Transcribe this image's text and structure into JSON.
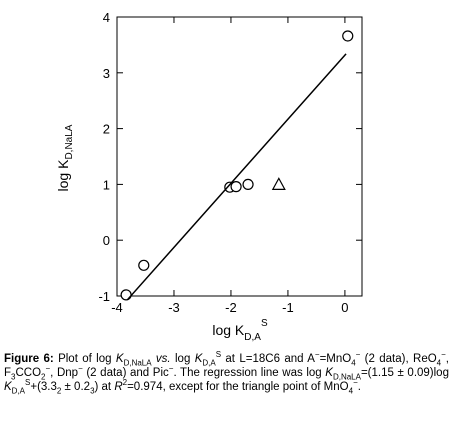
{
  "chart_data": {
    "type": "scatter",
    "xlabel": {
      "text": "log K",
      "sub": "D,A",
      "sup": "S"
    },
    "ylabel": {
      "text": "log K",
      "sub": "D,NaLA"
    },
    "xlim": [
      -4,
      0.3
    ],
    "xticks": [
      -4,
      -3,
      -2,
      -1,
      0
    ],
    "ylim": [
      -1,
      4
    ],
    "yticks": [
      -1,
      0,
      1,
      2,
      3,
      4
    ],
    "color": "#000000",
    "series": [
      {
        "marker": "circle",
        "x": [
          0.05,
          -2.02,
          -1.91,
          -1.7,
          -3.53,
          -3.84
        ],
        "y": [
          3.66,
          0.95,
          0.96,
          1.0,
          -0.45,
          -0.98
        ]
      },
      {
        "marker": "triangle",
        "x": [
          -1.16
        ],
        "y": [
          1.0
        ]
      },
      {
        "marker": "line",
        "x": [
          -3.82,
          0.02
        ],
        "y": [
          -1.07,
          3.34
        ]
      }
    ]
  },
  "caption": [
    {
      "text": "Figure 6:",
      "style": "b"
    },
    {
      "text": " Plot of log "
    },
    {
      "text": "K",
      "style": "i"
    },
    {
      "text": "D,NaLA",
      "style": "sub"
    },
    {
      "text": " vs.",
      "style": "i"
    },
    {
      "text": " log "
    },
    {
      "text": "K",
      "style": "i"
    },
    {
      "text": "D,A",
      "style": "sub"
    },
    {
      "text": "S",
      "style": "sup"
    },
    {
      "text": " at L=18C6 and A"
    },
    {
      "text": "−",
      "style": "sup"
    },
    {
      "text": "=MnO"
    },
    {
      "text": "4",
      "style": "sub"
    },
    {
      "text": "−",
      "style": "sup"
    },
    {
      "text": " (2 data), ReO"
    },
    {
      "text": "4",
      "style": "sub"
    },
    {
      "text": "−",
      "style": "sup"
    },
    {
      "text": ", F"
    },
    {
      "text": "3",
      "style": "sub"
    },
    {
      "text": "CCO"
    },
    {
      "text": "2",
      "style": "sub"
    },
    {
      "text": "−",
      "style": "sup"
    },
    {
      "text": ", Dnp"
    },
    {
      "text": "−",
      "style": "sup"
    },
    {
      "text": " (2 data) and Pic"
    },
    {
      "text": "−",
      "style": "sup"
    },
    {
      "text": ". The regression line was log "
    },
    {
      "text": "K",
      "style": "i"
    },
    {
      "text": "D,NaLA",
      "style": "sub"
    },
    {
      "text": "=(1.15 ± 0.09)log "
    },
    {
      "text": "K",
      "style": "i"
    },
    {
      "text": "D,A",
      "style": "sub"
    },
    {
      "text": "S",
      "style": "sup"
    },
    {
      "text": "+(3.3"
    },
    {
      "text": "2",
      "style": "sub"
    },
    {
      "text": " ± 0.2"
    },
    {
      "text": "3",
      "style": "sub"
    },
    {
      "text": ") at "
    },
    {
      "text": "R",
      "style": "i"
    },
    {
      "text": "2",
      "style": "sup"
    },
    {
      "text": "=0.974, except for the triangle point of MnO"
    },
    {
      "text": "4",
      "style": "sub"
    },
    {
      "text": "−",
      "style": "sup"
    },
    {
      "text": "."
    }
  ]
}
